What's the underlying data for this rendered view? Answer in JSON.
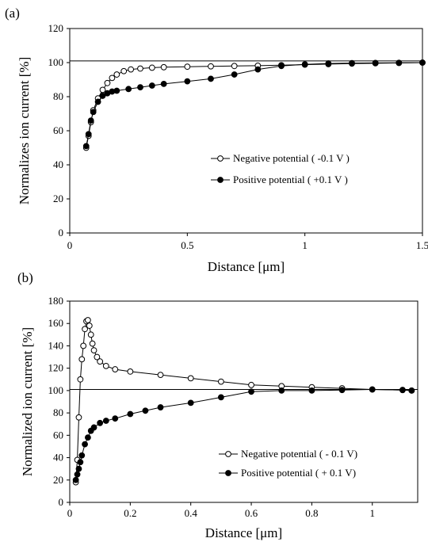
{
  "chart_data": [
    {
      "type": "scatter",
      "panel_label": "(a)",
      "xlabel": "Distance [μm]",
      "ylabel": "Normalizes ion current  [%]",
      "xlim": [
        0,
        1.5
      ],
      "ylim": [
        0,
        120
      ],
      "xticks": [
        "0",
        "0.5",
        "1",
        "1.5"
      ],
      "yticks": [
        "0",
        "20",
        "40",
        "60",
        "80",
        "100",
        "120"
      ],
      "reference_line": 101,
      "legend_position": "right",
      "series": [
        {
          "name": "Negative potential ( -0.1 V )",
          "marker": "open-circle",
          "x": [
            0.07,
            0.08,
            0.09,
            0.1,
            0.12,
            0.14,
            0.16,
            0.18,
            0.2,
            0.23,
            0.26,
            0.3,
            0.35,
            0.4,
            0.5,
            0.6,
            0.7,
            0.8,
            0.9,
            1.0,
            1.1,
            1.2,
            1.3,
            1.4,
            1.5
          ],
          "y": [
            50,
            57,
            65,
            72,
            79,
            84,
            88,
            91,
            93,
            95,
            96,
            96.5,
            97,
            97.3,
            97.6,
            97.8,
            98,
            98.2,
            98.5,
            98.8,
            99.1,
            99.4,
            99.6,
            99.8,
            100
          ]
        },
        {
          "name": "Positive potential ( +0.1 V )",
          "marker": "filled-circle",
          "x": [
            0.07,
            0.08,
            0.09,
            0.1,
            0.12,
            0.14,
            0.16,
            0.18,
            0.2,
            0.25,
            0.3,
            0.35,
            0.4,
            0.5,
            0.6,
            0.7,
            0.8,
            0.9,
            1.0,
            1.1,
            1.2,
            1.3,
            1.4,
            1.5
          ],
          "y": [
            51,
            58,
            66,
            71,
            77,
            80.5,
            82,
            83,
            83.5,
            84.5,
            85.5,
            86.5,
            87.5,
            89,
            90.5,
            93,
            96,
            98,
            99,
            99.5,
            99.7,
            99.8,
            99.9,
            100
          ]
        }
      ]
    },
    {
      "type": "scatter",
      "panel_label": "(b)",
      "xlabel": "Distance [μm]",
      "ylabel": "Normalized ion current  [%]",
      "xlim": [
        0,
        1.15
      ],
      "ylim": [
        0,
        180
      ],
      "xticks": [
        "0",
        "0.2",
        "0.4",
        "0.6",
        "0.8",
        "1"
      ],
      "yticks": [
        "0",
        "20",
        "40",
        "60",
        "80",
        "100",
        "120",
        "140",
        "160",
        "180"
      ],
      "reference_line": 101,
      "legend_position": "bottom-right",
      "series": [
        {
          "name": "Negative potential ( - 0.1 V)",
          "marker": "open-circle",
          "x": [
            0.02,
            0.025,
            0.03,
            0.035,
            0.04,
            0.045,
            0.05,
            0.055,
            0.06,
            0.065,
            0.07,
            0.075,
            0.08,
            0.09,
            0.1,
            0.12,
            0.15,
            0.2,
            0.3,
            0.4,
            0.5,
            0.6,
            0.7,
            0.8,
            0.9,
            1.0,
            1.1,
            1.13
          ],
          "y": [
            18,
            38,
            76,
            110,
            128,
            140,
            155,
            162,
            163,
            158,
            150,
            142,
            136,
            130,
            126,
            122,
            119,
            117,
            114,
            111,
            108,
            105,
            104,
            103,
            102,
            101,
            100.5,
            100
          ]
        },
        {
          "name": "Positive potential ( + 0.1 V)",
          "marker": "filled-circle",
          "x": [
            0.02,
            0.025,
            0.03,
            0.035,
            0.04,
            0.05,
            0.06,
            0.07,
            0.08,
            0.1,
            0.12,
            0.15,
            0.2,
            0.25,
            0.3,
            0.4,
            0.5,
            0.6,
            0.7,
            0.8,
            0.9,
            1.0,
            1.1,
            1.13
          ],
          "y": [
            20,
            25,
            30,
            36,
            42,
            52,
            58,
            64,
            67,
            71,
            73,
            75,
            79,
            82,
            85,
            89,
            94,
            99,
            100,
            100,
            100.5,
            101,
            100.5,
            100
          ]
        }
      ]
    }
  ]
}
